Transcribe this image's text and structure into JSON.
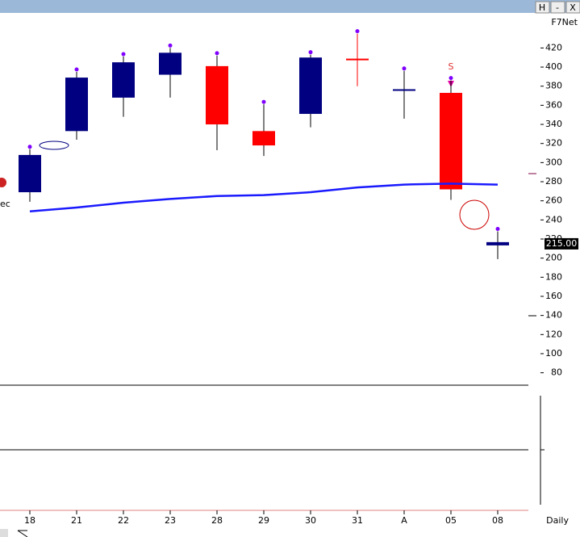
{
  "chart_data": {
    "type": "candlestick",
    "window_buttons": [
      "H",
      "-",
      "X"
    ],
    "symbol": "F7Net",
    "period": "Daily",
    "left_label": "ec",
    "signal_label": "S",
    "categories": [
      "18",
      "21",
      "22",
      "23",
      "28",
      "29",
      "30",
      "31",
      "A",
      "05",
      "08"
    ],
    "open": [
      269,
      333,
      368,
      392,
      401,
      333,
      351,
      408,
      376,
      373,
      215
    ],
    "high": [
      314,
      395,
      411,
      420,
      412,
      361,
      413,
      435,
      396,
      386,
      228
    ],
    "low": [
      259,
      324,
      348,
      368,
      313,
      307,
      337,
      380,
      346,
      261,
      199
    ],
    "close": [
      308,
      389,
      405,
      415,
      340,
      318,
      410,
      408,
      376,
      272,
      215
    ],
    "colors": [
      "#000080",
      "#000080",
      "#000080",
      "#000080",
      "#ff0000",
      "#ff0000",
      "#000080",
      "#ff0000",
      "#000080",
      "#ff0000",
      "#000080"
    ],
    "ma": [
      249,
      253,
      258,
      262,
      265,
      266,
      269,
      274,
      277,
      278,
      277
    ],
    "ma_color": "#1a1aff",
    "dot_color": "#8000ff",
    "price_marker": {
      "value": 215,
      "label": "215.00"
    },
    "ylim": [
      67,
      455
    ],
    "yticks": [
      80,
      100,
      120,
      140,
      160,
      180,
      200,
      220,
      240,
      260,
      280,
      300,
      320,
      340,
      360,
      380,
      400,
      420
    ]
  }
}
